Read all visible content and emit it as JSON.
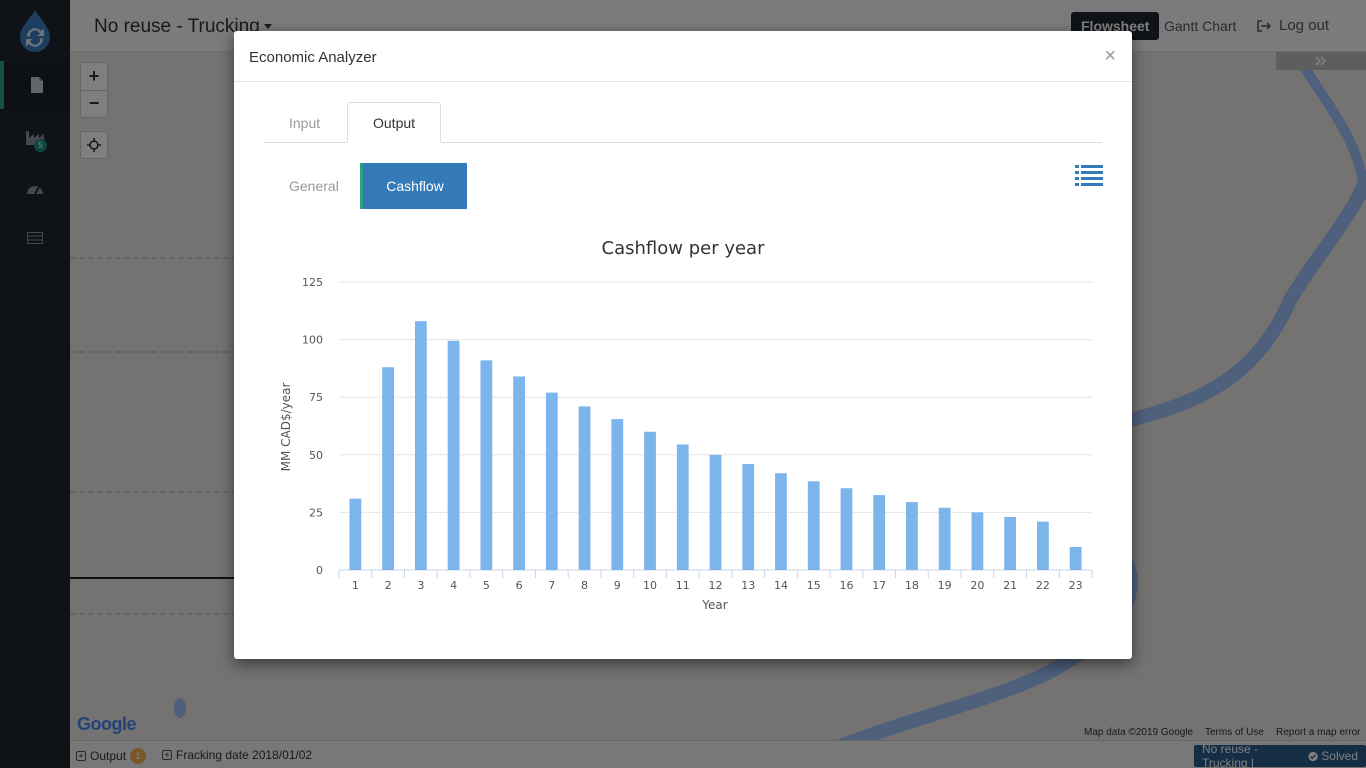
{
  "sidebar": {
    "items": [
      {
        "icon": "file-icon",
        "active": true
      },
      {
        "icon": "factory-icon",
        "badge": "5"
      },
      {
        "icon": "dashboard-icon"
      },
      {
        "icon": "table-icon"
      }
    ]
  },
  "header": {
    "title": "No reuse - Trucking",
    "flowsheet_label": "Flowsheet",
    "gantt_label": "Gantt Chart",
    "logout_label": "Log out"
  },
  "map": {
    "zoom_in": "+",
    "zoom_out": "−",
    "google_label": "Google",
    "attribution": [
      "Map data ©2019 Google",
      "Terms of Use",
      "Report a map error"
    ]
  },
  "footer": {
    "output_label": "Output",
    "output_badge": "1",
    "fracking_label": "Fracking date 2018/01/02",
    "status": "No reuse - Trucking |",
    "solved": "Solved"
  },
  "modal": {
    "title": "Economic Analyzer",
    "close": "×",
    "tabs": [
      "Input",
      "Output"
    ],
    "active_tab": "Output",
    "subtabs": [
      "General",
      "Cashflow"
    ],
    "active_subtab": "Cashflow"
  },
  "chart_data": {
    "type": "bar",
    "title": "Cashflow per year",
    "xlabel": "Year",
    "ylabel": "MM CAD$/year",
    "categories": [
      "1",
      "2",
      "3",
      "4",
      "5",
      "6",
      "7",
      "8",
      "9",
      "10",
      "11",
      "12",
      "13",
      "14",
      "15",
      "16",
      "17",
      "18",
      "19",
      "20",
      "21",
      "22",
      "23"
    ],
    "values": [
      31,
      88,
      108,
      99.5,
      91,
      84,
      77,
      71,
      65.5,
      60,
      54.5,
      50,
      46,
      42,
      38.5,
      35.5,
      32.5,
      29.5,
      27,
      25,
      23,
      21,
      10
    ],
    "ylim": [
      0,
      125
    ],
    "yticks": [
      0,
      25,
      50,
      75,
      100,
      125
    ],
    "grid": true,
    "color": "#7cb5ec"
  }
}
